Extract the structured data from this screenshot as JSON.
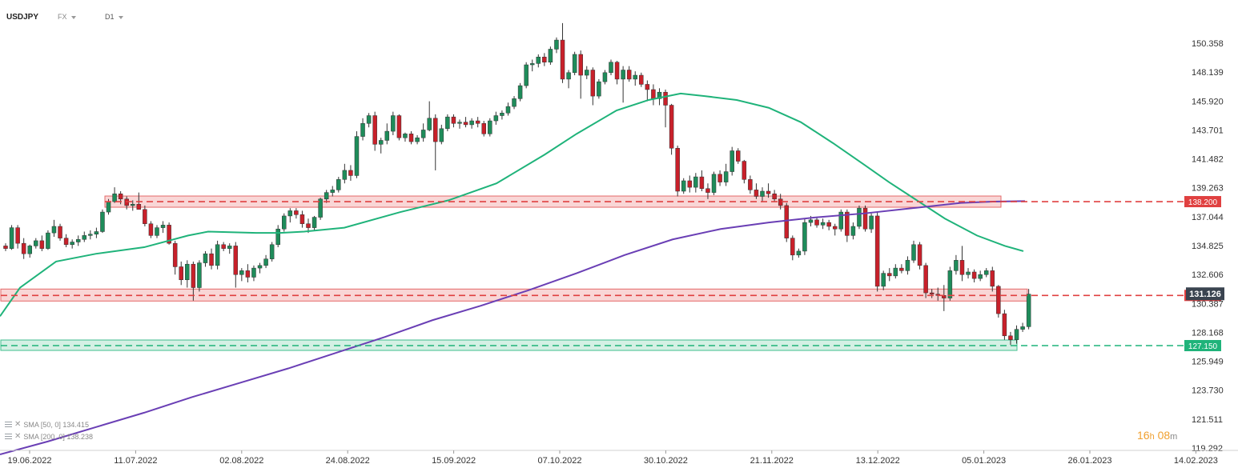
{
  "header": {
    "symbol": "USDJPY",
    "market": "FX",
    "timeframe": "D1"
  },
  "indicators": [
    {
      "label": "SMA [50, 0] 134.415",
      "color": "#1fb37a"
    },
    {
      "label": "SMA [200, 0] 138.238",
      "color": "#6a3fb5"
    }
  ],
  "countdown": {
    "hours": "16",
    "hours_unit": "h",
    "minutes": "08",
    "minutes_unit": "m"
  },
  "chart_data": {
    "type": "candlestick",
    "title": "",
    "ylim": [
      119.292,
      152.0
    ],
    "y_ticks": [
      "150.358",
      "148.139",
      "145.920",
      "143.701",
      "141.482",
      "139.263",
      "137.044",
      "134.825",
      "132.606",
      "130.387",
      "128.168",
      "125.949",
      "123.730",
      "121.511",
      "119.292"
    ],
    "x_ticks": [
      "19.06.2022",
      "11.07.2022",
      "02.08.2022",
      "24.08.2022",
      "15.09.2022",
      "07.10.2022",
      "30.10.2022",
      "21.11.2022",
      "13.12.2022",
      "05.01.2023",
      "26.01.2023",
      "14.02.2023"
    ],
    "current_price": {
      "label": "131.126",
      "value": 131.126,
      "color": "#3a4450"
    },
    "levels": [
      {
        "label": "138.200",
        "value": 138.2,
        "style": "resistance",
        "color": "#e04040"
      },
      {
        "label": "131.000",
        "value": 131.0,
        "style": "resistance",
        "color": "#e04040"
      },
      {
        "label": "127.150",
        "value": 127.15,
        "style": "support",
        "color": "#1fb37a"
      }
    ],
    "colors": {
      "up": "#1e8c5a",
      "down": "#c8202a",
      "wick": "#333333",
      "sma50": "#1fb37a",
      "sma200": "#6a3fb5"
    },
    "candles": [
      [
        134.8,
        135.0,
        134.4,
        134.6
      ],
      [
        134.6,
        136.4,
        134.5,
        136.2
      ],
      [
        136.2,
        136.4,
        134.6,
        135.0
      ],
      [
        135.0,
        135.4,
        133.8,
        134.2
      ],
      [
        134.2,
        134.9,
        133.9,
        134.8
      ],
      [
        134.8,
        135.4,
        134.6,
        135.2
      ],
      [
        135.2,
        135.6,
        134.4,
        134.6
      ],
      [
        134.6,
        136.0,
        134.5,
        135.8
      ],
      [
        135.8,
        136.8,
        135.5,
        136.3
      ],
      [
        136.3,
        136.5,
        135.2,
        135.4
      ],
      [
        135.4,
        135.7,
        134.7,
        134.9
      ],
      [
        134.9,
        135.3,
        134.6,
        135.1
      ],
      [
        135.1,
        135.6,
        134.8,
        135.3
      ],
      [
        135.3,
        135.9,
        135.1,
        135.6
      ],
      [
        135.6,
        136.0,
        135.3,
        135.7
      ],
      [
        135.7,
        136.2,
        135.4,
        135.9
      ],
      [
        135.9,
        137.6,
        135.8,
        137.4
      ],
      [
        137.4,
        138.4,
        137.2,
        138.2
      ],
      [
        138.2,
        139.3,
        138.1,
        138.8
      ],
      [
        138.8,
        139.0,
        138.0,
        138.4
      ],
      [
        138.4,
        138.6,
        137.6,
        137.9
      ],
      [
        137.9,
        138.3,
        137.5,
        138.0
      ],
      [
        138.0,
        138.9,
        137.8,
        137.6
      ],
      [
        137.6,
        137.9,
        136.3,
        136.5
      ],
      [
        136.5,
        136.7,
        135.4,
        135.6
      ],
      [
        135.6,
        136.4,
        135.4,
        136.2
      ],
      [
        136.2,
        136.7,
        135.8,
        136.4
      ],
      [
        136.4,
        136.6,
        134.9,
        135.0
      ],
      [
        135.0,
        135.2,
        132.6,
        133.2
      ],
      [
        133.2,
        133.6,
        131.8,
        132.2
      ],
      [
        132.2,
        133.7,
        131.6,
        133.4
      ],
      [
        133.4,
        133.6,
        130.6,
        131.6
      ],
      [
        131.6,
        133.7,
        131.3,
        133.5
      ],
      [
        133.5,
        134.4,
        133.2,
        134.2
      ],
      [
        134.2,
        134.6,
        133.0,
        133.3
      ],
      [
        133.3,
        135.2,
        133.0,
        134.9
      ],
      [
        134.9,
        135.1,
        134.4,
        134.6
      ],
      [
        134.6,
        135.0,
        134.2,
        134.8
      ],
      [
        134.8,
        135.1,
        131.6,
        132.6
      ],
      [
        132.6,
        133.1,
        132.1,
        132.9
      ],
      [
        132.9,
        133.4,
        132.0,
        132.4
      ],
      [
        132.4,
        133.3,
        132.1,
        133.1
      ],
      [
        133.1,
        133.5,
        132.7,
        133.3
      ],
      [
        133.3,
        134.1,
        133.1,
        133.8
      ],
      [
        133.8,
        135.1,
        133.6,
        134.9
      ],
      [
        134.9,
        136.4,
        134.7,
        136.1
      ],
      [
        136.1,
        137.3,
        135.9,
        137.1
      ],
      [
        137.1,
        137.7,
        136.6,
        137.5
      ],
      [
        137.5,
        137.7,
        136.9,
        137.2
      ],
      [
        137.2,
        137.5,
        136.2,
        136.5
      ],
      [
        136.5,
        136.9,
        135.8,
        136.2
      ],
      [
        136.2,
        137.1,
        136.0,
        137.0
      ],
      [
        137.0,
        138.5,
        136.8,
        138.4
      ],
      [
        138.4,
        139.1,
        138.1,
        138.9
      ],
      [
        138.9,
        139.4,
        138.6,
        139.1
      ],
      [
        139.1,
        140.1,
        138.9,
        139.9
      ],
      [
        139.9,
        141.1,
        139.6,
        140.6
      ],
      [
        140.6,
        141.0,
        139.8,
        140.2
      ],
      [
        140.2,
        143.6,
        140.0,
        143.2
      ],
      [
        143.2,
        144.6,
        142.9,
        144.2
      ],
      [
        144.2,
        145.0,
        143.9,
        144.8
      ],
      [
        144.8,
        145.1,
        142.1,
        142.6
      ],
      [
        142.6,
        143.1,
        141.9,
        142.9
      ],
      [
        142.9,
        144.2,
        142.6,
        143.6
      ],
      [
        143.6,
        145.1,
        143.3,
        144.8
      ],
      [
        144.8,
        144.9,
        142.9,
        143.1
      ],
      [
        143.1,
        143.5,
        142.8,
        143.4
      ],
      [
        143.4,
        143.6,
        142.6,
        142.8
      ],
      [
        142.8,
        143.3,
        142.6,
        143.1
      ],
      [
        143.1,
        144.2,
        142.8,
        143.7
      ],
      [
        143.7,
        145.9,
        143.6,
        144.6
      ],
      [
        144.6,
        144.9,
        140.6,
        142.8
      ],
      [
        142.8,
        144.1,
        142.6,
        143.8
      ],
      [
        143.8,
        144.9,
        143.6,
        144.7
      ],
      [
        144.7,
        144.9,
        143.9,
        144.2
      ],
      [
        144.2,
        144.5,
        143.8,
        144.3
      ],
      [
        144.3,
        144.7,
        143.9,
        144.1
      ],
      [
        144.1,
        144.6,
        143.8,
        144.4
      ],
      [
        144.4,
        144.7,
        143.9,
        144.2
      ],
      [
        144.2,
        144.4,
        143.2,
        143.4
      ],
      [
        143.4,
        144.6,
        143.2,
        144.4
      ],
      [
        144.4,
        145.1,
        144.1,
        144.8
      ],
      [
        144.8,
        145.2,
        144.5,
        145.0
      ],
      [
        145.0,
        145.8,
        144.8,
        145.5
      ],
      [
        145.5,
        146.3,
        145.3,
        146.1
      ],
      [
        146.1,
        147.3,
        145.9,
        147.1
      ],
      [
        147.1,
        148.9,
        146.9,
        148.7
      ],
      [
        148.7,
        149.1,
        148.2,
        148.8
      ],
      [
        148.8,
        149.5,
        148.5,
        149.3
      ],
      [
        149.3,
        149.6,
        148.6,
        148.9
      ],
      [
        148.9,
        150.1,
        148.7,
        149.9
      ],
      [
        149.9,
        150.8,
        149.6,
        150.6
      ],
      [
        150.6,
        151.9,
        147.3,
        147.6
      ],
      [
        147.6,
        148.3,
        146.9,
        148.1
      ],
      [
        148.1,
        149.7,
        147.9,
        149.5
      ],
      [
        149.5,
        149.8,
        146.1,
        147.9
      ],
      [
        147.9,
        148.6,
        147.6,
        148.3
      ],
      [
        148.3,
        148.5,
        145.6,
        146.3
      ],
      [
        146.3,
        147.6,
        146.1,
        147.4
      ],
      [
        147.4,
        148.3,
        147.2,
        148.1
      ],
      [
        148.1,
        149.1,
        147.9,
        148.9
      ],
      [
        148.9,
        149.0,
        147.2,
        147.6
      ],
      [
        147.6,
        148.6,
        145.8,
        148.3
      ],
      [
        148.3,
        148.6,
        147.4,
        147.6
      ],
      [
        147.6,
        148.2,
        147.1,
        147.9
      ],
      [
        147.9,
        148.1,
        147.0,
        147.2
      ],
      [
        147.2,
        147.5,
        145.9,
        146.8
      ],
      [
        146.8,
        147.2,
        145.6,
        146.1
      ],
      [
        146.1,
        146.9,
        145.6,
        146.6
      ],
      [
        146.6,
        146.8,
        143.9,
        145.6
      ],
      [
        145.6,
        145.7,
        141.8,
        142.3
      ],
      [
        142.3,
        142.5,
        138.6,
        139.0
      ],
      [
        139.0,
        140.0,
        138.8,
        139.8
      ],
      [
        139.8,
        140.2,
        138.9,
        139.3
      ],
      [
        139.3,
        140.4,
        138.9,
        140.1
      ],
      [
        140.1,
        140.6,
        139.0,
        139.2
      ],
      [
        139.2,
        139.6,
        138.4,
        138.9
      ],
      [
        138.9,
        140.5,
        138.7,
        140.3
      ],
      [
        140.3,
        140.6,
        139.4,
        139.7
      ],
      [
        139.7,
        141.1,
        139.4,
        140.5
      ],
      [
        140.5,
        142.4,
        140.2,
        142.1
      ],
      [
        142.1,
        142.3,
        141.1,
        141.3
      ],
      [
        141.3,
        141.4,
        139.6,
        139.9
      ],
      [
        139.9,
        140.2,
        138.8,
        139.1
      ],
      [
        139.1,
        139.6,
        138.4,
        138.6
      ],
      [
        138.6,
        139.3,
        138.2,
        139.0
      ],
      [
        139.0,
        139.6,
        138.5,
        138.8
      ],
      [
        138.8,
        139.1,
        138.2,
        138.4
      ],
      [
        138.4,
        138.8,
        137.6,
        137.9
      ],
      [
        137.9,
        138.1,
        135.1,
        135.4
      ],
      [
        135.4,
        135.6,
        133.7,
        134.1
      ],
      [
        134.1,
        134.6,
        133.9,
        134.4
      ],
      [
        134.4,
        136.9,
        134.1,
        136.6
      ],
      [
        136.6,
        137.1,
        136.3,
        136.8
      ],
      [
        136.8,
        137.0,
        136.2,
        136.4
      ],
      [
        136.4,
        136.9,
        136.1,
        136.6
      ],
      [
        136.6,
        136.8,
        136.0,
        136.3
      ],
      [
        136.3,
        136.5,
        135.6,
        136.1
      ],
      [
        136.1,
        137.6,
        135.9,
        137.4
      ],
      [
        137.4,
        137.6,
        135.1,
        135.6
      ],
      [
        135.6,
        136.6,
        135.3,
        136.3
      ],
      [
        136.3,
        137.9,
        136.1,
        137.7
      ],
      [
        137.7,
        137.9,
        135.9,
        136.1
      ],
      [
        136.1,
        137.3,
        135.8,
        137.1
      ],
      [
        137.1,
        137.4,
        131.3,
        131.7
      ],
      [
        131.7,
        132.9,
        131.4,
        132.7
      ],
      [
        132.7,
        133.1,
        132.1,
        132.5
      ],
      [
        132.5,
        133.4,
        132.3,
        133.1
      ],
      [
        133.1,
        133.4,
        132.7,
        132.9
      ],
      [
        132.9,
        134.0,
        132.6,
        133.7
      ],
      [
        133.7,
        135.2,
        133.5,
        134.9
      ],
      [
        134.9,
        135.1,
        133.0,
        133.3
      ],
      [
        133.3,
        133.5,
        130.8,
        131.2
      ],
      [
        131.2,
        131.5,
        130.8,
        131.1
      ],
      [
        131.1,
        131.6,
        130.6,
        131.0
      ],
      [
        131.0,
        131.8,
        129.8,
        130.8
      ],
      [
        130.8,
        133.2,
        130.6,
        132.9
      ],
      [
        132.9,
        134.1,
        132.6,
        133.7
      ],
      [
        133.7,
        134.8,
        132.1,
        132.6
      ],
      [
        132.6,
        133.1,
        132.3,
        132.8
      ],
      [
        132.8,
        133.0,
        132.0,
        132.3
      ],
      [
        132.3,
        132.9,
        132.1,
        132.6
      ],
      [
        132.6,
        133.1,
        132.4,
        132.9
      ],
      [
        132.9,
        133.2,
        131.3,
        131.7
      ],
      [
        131.7,
        131.8,
        129.3,
        129.6
      ],
      [
        129.6,
        129.9,
        127.6,
        127.9
      ],
      [
        127.9,
        128.2,
        127.2,
        127.6
      ],
      [
        127.6,
        128.7,
        127.3,
        128.4
      ],
      [
        128.4,
        128.9,
        128.2,
        128.6
      ],
      [
        128.6,
        131.5,
        128.4,
        131.1
      ]
    ],
    "sma50": [
      [
        0,
        129.4
      ],
      [
        25,
        131.6
      ],
      [
        70,
        133.6
      ],
      [
        120,
        134.2
      ],
      [
        180,
        134.7
      ],
      [
        235,
        135.6
      ],
      [
        260,
        135.9
      ],
      [
        320,
        135.8
      ],
      [
        350,
        135.8
      ],
      [
        380,
        135.9
      ],
      [
        430,
        136.2
      ],
      [
        500,
        137.4
      ],
      [
        560,
        138.3
      ],
      [
        620,
        139.6
      ],
      [
        680,
        141.8
      ],
      [
        720,
        143.4
      ],
      [
        770,
        145.2
      ],
      [
        810,
        146.0
      ],
      [
        850,
        146.5
      ],
      [
        880,
        146.3
      ],
      [
        920,
        146.0
      ],
      [
        960,
        145.4
      ],
      [
        1000,
        144.3
      ],
      [
        1040,
        142.7
      ],
      [
        1080,
        141.0
      ],
      [
        1110,
        139.7
      ],
      [
        1150,
        138.1
      ],
      [
        1180,
        136.9
      ],
      [
        1220,
        135.6
      ],
      [
        1255,
        134.8
      ],
      [
        1278,
        134.4
      ]
    ],
    "sma200": [
      [
        0,
        118.8
      ],
      [
        60,
        119.8
      ],
      [
        120,
        120.9
      ],
      [
        180,
        122.0
      ],
      [
        240,
        123.2
      ],
      [
        300,
        124.3
      ],
      [
        360,
        125.4
      ],
      [
        420,
        126.6
      ],
      [
        480,
        127.8
      ],
      [
        540,
        129.1
      ],
      [
        600,
        130.2
      ],
      [
        660,
        131.4
      ],
      [
        720,
        132.7
      ],
      [
        780,
        134.1
      ],
      [
        840,
        135.3
      ],
      [
        900,
        136.1
      ],
      [
        960,
        136.6
      ],
      [
        1020,
        137.0
      ],
      [
        1080,
        137.3
      ],
      [
        1140,
        137.7
      ],
      [
        1200,
        138.1
      ],
      [
        1240,
        138.2
      ],
      [
        1280,
        138.24
      ]
    ]
  }
}
